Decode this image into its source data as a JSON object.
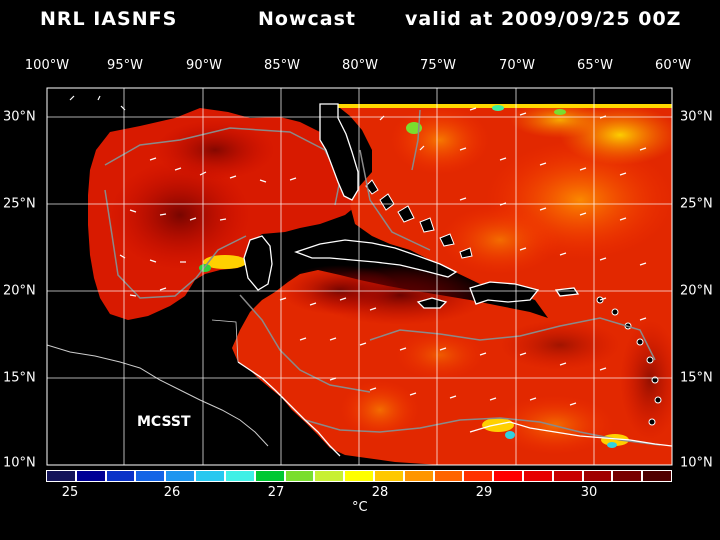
{
  "header": {
    "model": "NRL IASNFS",
    "product": "Nowcast",
    "valid": "valid at 2009/09/25 00Z"
  },
  "axes": {
    "lon_labels": [
      "100°W",
      "95°W",
      "90°W",
      "85°W",
      "80°W",
      "75°W",
      "70°W",
      "65°W",
      "60°W"
    ],
    "lat_labels_left": [
      "30°N",
      "25°N",
      "20°N",
      "15°N",
      "10°N"
    ],
    "lat_labels_right": [
      "30°N",
      "25°N",
      "20°N",
      "15°N",
      "10°N"
    ]
  },
  "overlay": {
    "source_label": "MCSST"
  },
  "colorbar": {
    "ticks": [
      "25",
      "26",
      "27",
      "28",
      "29",
      "30"
    ],
    "unit": "°C",
    "colors": [
      "#14145a",
      "#000096",
      "#0a32c8",
      "#1464e6",
      "#1e96f0",
      "#28c8f0",
      "#40f0e6",
      "#00c832",
      "#7ade2e",
      "#c8f032",
      "#ffff00",
      "#ffc800",
      "#ff9600",
      "#ff6400",
      "#ff3200",
      "#ff0000",
      "#e60000",
      "#c80000",
      "#a00000",
      "#780000",
      "#500000"
    ]
  },
  "map": {
    "extent": {
      "lon": [
        -100,
        -60
      ],
      "lat": [
        10,
        31
      ]
    },
    "land_color": "#000000",
    "coast_color": "#ffffff",
    "bathymetry_color": "#888888",
    "grid_color": "#ffffff"
  }
}
